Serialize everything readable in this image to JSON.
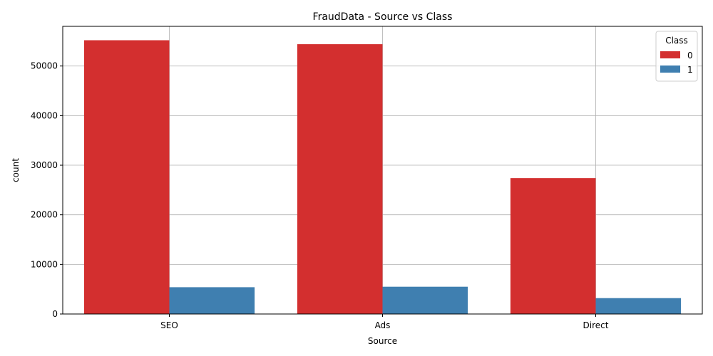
{
  "chart_data": {
    "type": "bar",
    "title": "FraudData - Source vs Class",
    "xlabel": "Source",
    "ylabel": "count",
    "categories": [
      "SEO",
      "Ads",
      "Direct"
    ],
    "series": [
      {
        "name": "0",
        "values": [
          55200,
          54400,
          27400
        ],
        "color": "#d32f2f"
      },
      {
        "name": "1",
        "values": [
          5400,
          5500,
          3200
        ],
        "color": "#3f7fb0"
      }
    ],
    "ylim": [
      0,
      58000
    ],
    "yticks": [
      0,
      10000,
      20000,
      30000,
      40000,
      50000
    ],
    "grid": true,
    "legend": {
      "title": "Class",
      "position": "top-right"
    }
  }
}
